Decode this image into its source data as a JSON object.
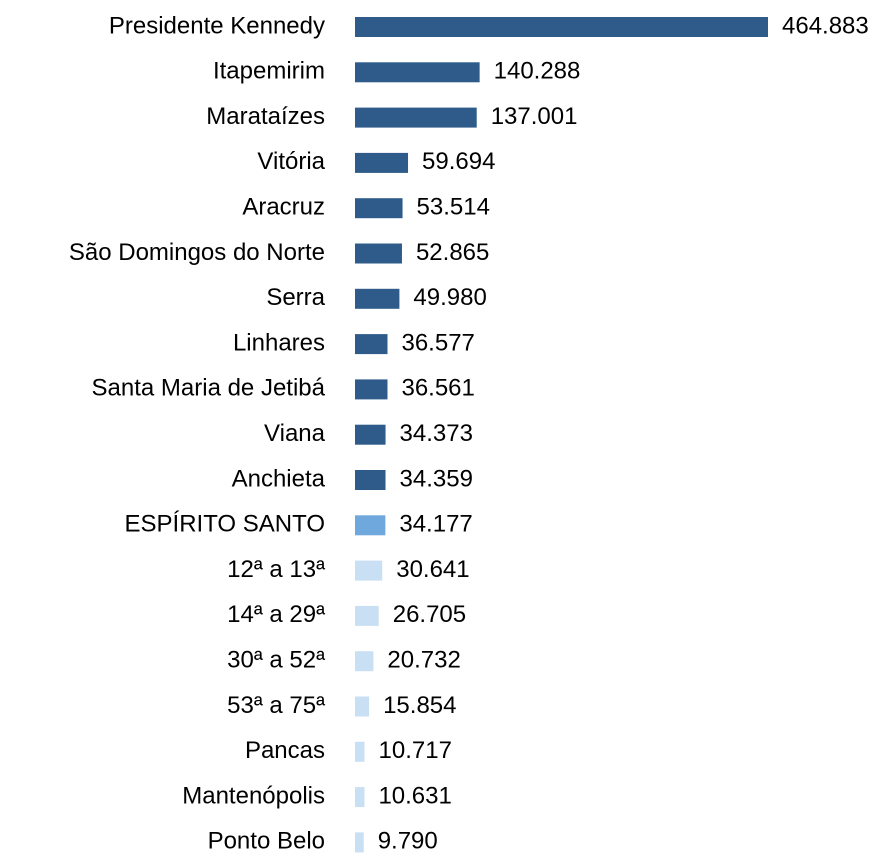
{
  "chart_data": {
    "type": "barh",
    "categories": [
      "Presidente Kennedy",
      "Itapemirim",
      "Marataízes",
      "Vitória",
      "Aracruz",
      "São Domingos do Norte",
      "Serra",
      "Linhares",
      "Santa Maria de Jetibá",
      "Viana",
      "Anchieta",
      "ESPÍRITO SANTO",
      "12ª a 13ª",
      "14ª a 29ª",
      "30ª a 52ª",
      "53ª a 75ª",
      "Pancas",
      "Mantenópolis",
      "Ponto Belo"
    ],
    "values": [
      464883,
      140288,
      137001,
      59694,
      53514,
      52865,
      49980,
      36577,
      36561,
      34373,
      34359,
      34177,
      30641,
      26705,
      20732,
      15854,
      10717,
      10631,
      9790
    ],
    "value_labels": [
      "464.883",
      "140.288",
      "137.001",
      "59.694",
      "53.514",
      "52.865",
      "49.980",
      "36.577",
      "36.561",
      "34.373",
      "34.359",
      "34.177",
      "30.641",
      "26.705",
      "20.732",
      "15.854",
      "10.717",
      "10.631",
      "9.790"
    ],
    "colors": [
      "#2e5b8a",
      "#2e5b8a",
      "#2e5b8a",
      "#2e5b8a",
      "#2e5b8a",
      "#2e5b8a",
      "#2e5b8a",
      "#2e5b8a",
      "#2e5b8a",
      "#2e5b8a",
      "#2e5b8a",
      "#6fa8dc",
      "#c9dff3",
      "#c9dff3",
      "#c9dff3",
      "#c9dff3",
      "#c9dff3",
      "#c9dff3",
      "#c9dff3"
    ]
  }
}
